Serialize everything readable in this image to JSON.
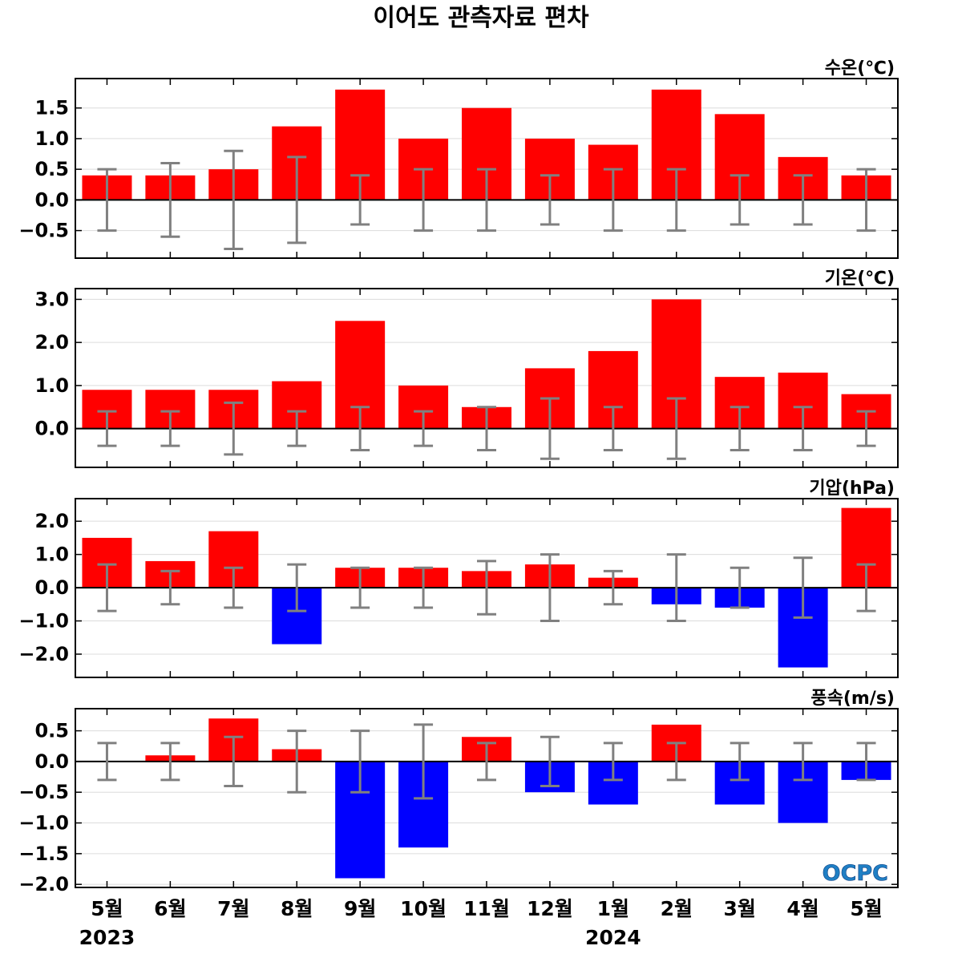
{
  "title": "이어도 관측자료 편차",
  "logo_text": "OCPC",
  "colors": {
    "positive": "#ff0000",
    "negative": "#0000ff",
    "errorbar": "#808080",
    "grid": "#dcdcdc",
    "zeroline": "#000000",
    "logo": "#1f7fc4"
  },
  "x_categories": [
    "5월",
    "6월",
    "7월",
    "8월",
    "9월",
    "10월",
    "11월",
    "12월",
    "1월",
    "2월",
    "3월",
    "4월",
    "5월"
  ],
  "year_labels": [
    {
      "text": "2023",
      "index": 0
    },
    {
      "text": "2024",
      "index": 8
    }
  ],
  "chart_data": [
    {
      "type": "bar",
      "title": "수온(℃)",
      "ylim": [
        -0.95,
        1.98
      ],
      "yticks": [
        1.5,
        1.0,
        0.5,
        0.0,
        -0.5
      ],
      "yticklabels": [
        "1.5",
        "1.0",
        "0.5",
        "0.0",
        "−0.5"
      ],
      "grid": true,
      "values": [
        0.4,
        0.4,
        0.5,
        1.2,
        1.8,
        1.0,
        1.5,
        1.0,
        0.9,
        1.8,
        1.4,
        0.7,
        0.4
      ],
      "error": [
        0.5,
        0.6,
        0.8,
        0.7,
        0.4,
        0.5,
        0.5,
        0.4,
        0.5,
        0.5,
        0.4,
        0.4,
        0.5
      ]
    },
    {
      "type": "bar",
      "title": "기온(℃)",
      "ylim": [
        -0.9,
        3.25
      ],
      "yticks": [
        3.0,
        2.0,
        1.0,
        0.0
      ],
      "yticklabels": [
        "3.0",
        "2.0",
        "1.0",
        "0.0"
      ],
      "grid": true,
      "values": [
        0.9,
        0.9,
        0.9,
        1.1,
        2.5,
        1.0,
        0.5,
        1.4,
        1.8,
        3.0,
        1.2,
        1.3,
        0.8
      ],
      "error": [
        0.4,
        0.4,
        0.6,
        0.4,
        0.5,
        0.4,
        0.5,
        0.7,
        0.5,
        0.7,
        0.5,
        0.5,
        0.4
      ]
    },
    {
      "type": "bar",
      "title": "기압(hPa)",
      "ylim": [
        -2.7,
        2.68
      ],
      "yticks": [
        2.0,
        1.0,
        0.0,
        -1.0,
        -2.0
      ],
      "yticklabels": [
        "2.0",
        "1.0",
        "0.0",
        "−1.0",
        "−2.0"
      ],
      "grid": true,
      "values": [
        1.5,
        0.8,
        1.7,
        -1.7,
        0.6,
        0.6,
        0.5,
        0.7,
        0.3,
        -0.5,
        -0.6,
        -2.4,
        2.4
      ],
      "error": [
        0.7,
        0.5,
        0.6,
        0.7,
        0.6,
        0.6,
        0.8,
        1.0,
        0.5,
        1.0,
        0.6,
        0.9,
        0.7
      ]
    },
    {
      "type": "bar",
      "title": "풍속(m/s)",
      "ylim": [
        -2.05,
        0.86
      ],
      "yticks": [
        0.5,
        0.0,
        -0.5,
        -1.0,
        -1.5,
        -2.0
      ],
      "yticklabels": [
        "0.5",
        "0.0",
        "−0.5",
        "−1.0",
        "−1.5",
        "−2.0"
      ],
      "grid": true,
      "values": [
        0.0,
        0.1,
        0.7,
        0.2,
        -1.9,
        -1.4,
        0.4,
        -0.5,
        -0.7,
        0.6,
        -0.7,
        -1.0,
        -0.3
      ],
      "error": [
        0.3,
        0.3,
        0.4,
        0.5,
        0.5,
        0.6,
        0.3,
        0.4,
        0.3,
        0.3,
        0.3,
        0.3,
        0.3
      ]
    }
  ]
}
